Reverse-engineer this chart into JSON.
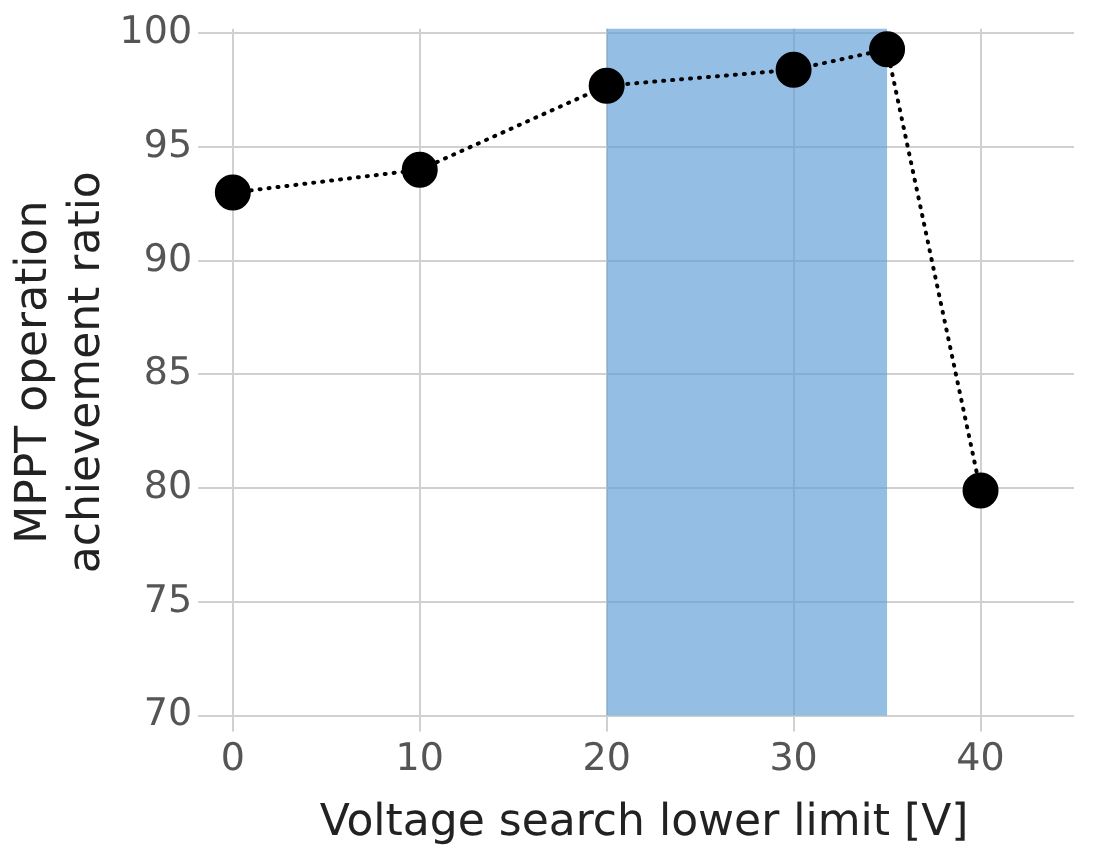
{
  "chart_data": {
    "type": "line",
    "xlabel": "Voltage search lower limit [V]",
    "ylabel": "MPPT operation achievement ratio",
    "x": [
      0,
      10,
      20,
      30,
      35,
      40
    ],
    "series": [
      {
        "color": "#000000",
        "values": [
          93.0,
          94.0,
          97.7,
          98.4,
          99.3,
          79.9
        ]
      }
    ],
    "xlim": [
      -1,
      45
    ],
    "xticks": [
      0,
      10,
      20,
      30,
      40
    ],
    "ylim": [
      70,
      100.2
    ],
    "yticks": [
      70,
      75,
      80,
      85,
      90,
      95,
      100
    ],
    "bands": [
      {
        "axis": "x",
        "from": 20,
        "to": 35,
        "color": "#5b9bd5"
      }
    ],
    "grid": true,
    "legend": false,
    "marker": "circle",
    "line_style": "dotted"
  }
}
